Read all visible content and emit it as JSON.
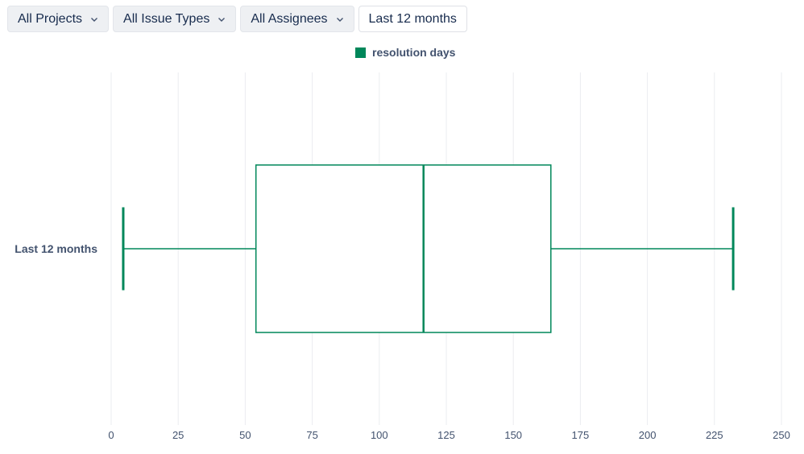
{
  "filters": {
    "projects": "All Projects",
    "issue_types": "All Issue Types",
    "assignees": "All Assignees",
    "period": "Last 12 months"
  },
  "icons": {
    "dropdown": "chevron-down-icon"
  },
  "colors": {
    "series": "#00875a",
    "grid": "#ebecf0",
    "text": "#42526e"
  },
  "chart_data": {
    "type": "boxplot",
    "orientation": "horizontal",
    "categories": [
      "Last 12 months"
    ],
    "series": [
      {
        "name": "resolution days",
        "boxes": [
          {
            "category": "Last 12 months",
            "min": 4.5,
            "q1": 54,
            "median": 116.5,
            "q3": 164,
            "max": 232
          }
        ]
      }
    ],
    "xlim": [
      0,
      250
    ],
    "xticks": [
      0,
      25,
      50,
      75,
      100,
      125,
      150,
      175,
      200,
      225,
      250
    ],
    "grid": true,
    "legend_position": "top-center"
  }
}
